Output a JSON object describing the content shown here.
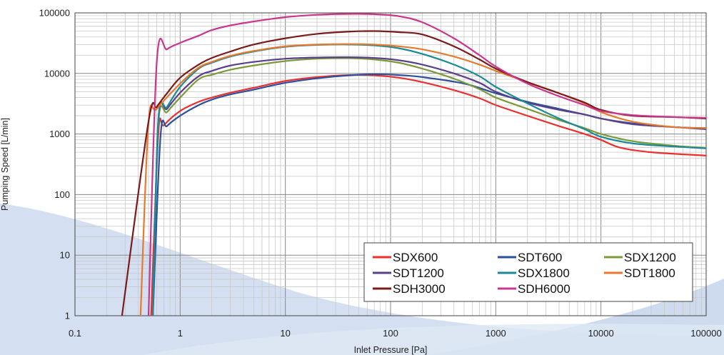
{
  "chart_data": {
    "type": "line",
    "title": "",
    "xlabel": "Inlet Pressure [Pa]",
    "ylabel": "Pumping Speed [L/min]",
    "x_scale": "log",
    "y_scale": "log",
    "xlim": [
      0.1,
      100000
    ],
    "ylim": [
      1,
      100000
    ],
    "grid": true,
    "legend_position": "bottom-right",
    "x_ticks": [
      "0.1",
      "1",
      "10",
      "100",
      "1000",
      "10000",
      "100000"
    ],
    "y_ticks": [
      "1",
      "10",
      "100",
      "1000",
      "10000",
      "100000"
    ],
    "series": [
      {
        "name": "SDX600",
        "color": "#e8302e",
        "points": [
          [
            0.53,
            1
          ],
          [
            0.62,
            1000
          ],
          [
            0.7,
            1400
          ],
          [
            1,
            2400
          ],
          [
            1.5,
            3400
          ],
          [
            2,
            4000
          ],
          [
            3,
            4800
          ],
          [
            5,
            5800
          ],
          [
            10,
            7500
          ],
          [
            20,
            8700
          ],
          [
            40,
            9400
          ],
          [
            70,
            9300
          ],
          [
            120,
            8500
          ],
          [
            200,
            7200
          ],
          [
            400,
            5300
          ],
          [
            700,
            3900
          ],
          [
            1000,
            3000
          ],
          [
            2000,
            2000
          ],
          [
            4000,
            1350
          ],
          [
            7000,
            1000
          ],
          [
            10000,
            800
          ],
          [
            15000,
            600
          ],
          [
            30000,
            500
          ],
          [
            100000,
            440
          ]
        ]
      },
      {
        "name": "SDT600",
        "color": "#2c4f9e",
        "points": [
          [
            0.55,
            1
          ],
          [
            0.65,
            900
          ],
          [
            0.75,
            1350
          ],
          [
            1,
            2000
          ],
          [
            1.5,
            3000
          ],
          [
            2,
            3700
          ],
          [
            3,
            4500
          ],
          [
            5,
            5400
          ],
          [
            10,
            7000
          ],
          [
            20,
            8300
          ],
          [
            40,
            9300
          ],
          [
            70,
            9700
          ],
          [
            120,
            9400
          ],
          [
            200,
            8700
          ],
          [
            500,
            6800
          ],
          [
            1000,
            4700
          ],
          [
            2000,
            3400
          ],
          [
            4000,
            2600
          ],
          [
            7000,
            2100
          ],
          [
            10000,
            1800
          ],
          [
            20000,
            1500
          ],
          [
            50000,
            1300
          ],
          [
            100000,
            1250
          ]
        ]
      },
      {
        "name": "SDX1200",
        "color": "#7a9a3a",
        "points": [
          [
            0.55,
            1
          ],
          [
            0.62,
            1500
          ],
          [
            0.75,
            2300
          ],
          [
            1,
            4000
          ],
          [
            1.5,
            8000
          ],
          [
            2,
            9500
          ],
          [
            3,
            11500
          ],
          [
            5,
            13500
          ],
          [
            10,
            16000
          ],
          [
            20,
            17500
          ],
          [
            40,
            17800
          ],
          [
            70,
            17000
          ],
          [
            120,
            15000
          ],
          [
            200,
            12000
          ],
          [
            400,
            8200
          ],
          [
            700,
            5500
          ],
          [
            1000,
            4000
          ],
          [
            2000,
            2600
          ],
          [
            4000,
            1700
          ],
          [
            7000,
            1250
          ],
          [
            10000,
            1000
          ],
          [
            20000,
            760
          ],
          [
            50000,
            640
          ],
          [
            100000,
            590
          ]
        ]
      },
      {
        "name": "SDT1200",
        "color": "#5a3f8a",
        "points": [
          [
            0.55,
            1
          ],
          [
            0.62,
            1700
          ],
          [
            0.75,
            2600
          ],
          [
            1,
            4800
          ],
          [
            1.5,
            9000
          ],
          [
            2,
            11000
          ],
          [
            3,
            13500
          ],
          [
            5,
            15500
          ],
          [
            10,
            17500
          ],
          [
            20,
            18300
          ],
          [
            40,
            18500
          ],
          [
            70,
            18000
          ],
          [
            120,
            16500
          ],
          [
            200,
            14000
          ],
          [
            400,
            10000
          ],
          [
            700,
            7000
          ],
          [
            1000,
            5000
          ],
          [
            2000,
            3300
          ],
          [
            4000,
            2500
          ],
          [
            7000,
            2100
          ],
          [
            10000,
            1800
          ],
          [
            20000,
            1450
          ],
          [
            50000,
            1300
          ],
          [
            100000,
            1200
          ]
        ]
      },
      {
        "name": "SDX1800",
        "color": "#1b8a98",
        "points": [
          [
            0.55,
            1
          ],
          [
            0.62,
            1700
          ],
          [
            0.75,
            2800
          ],
          [
            1,
            6000
          ],
          [
            1.5,
            12000
          ],
          [
            2,
            15000
          ],
          [
            3,
            19000
          ],
          [
            5,
            23000
          ],
          [
            10,
            27500
          ],
          [
            20,
            29500
          ],
          [
            40,
            30000
          ],
          [
            70,
            29000
          ],
          [
            120,
            26000
          ],
          [
            200,
            21000
          ],
          [
            400,
            14000
          ],
          [
            700,
            9000
          ],
          [
            1000,
            6000
          ],
          [
            2000,
            3200
          ],
          [
            4000,
            1800
          ],
          [
            7000,
            1200
          ],
          [
            10000,
            900
          ],
          [
            20000,
            700
          ],
          [
            50000,
            620
          ],
          [
            100000,
            580
          ]
        ]
      },
      {
        "name": "SDT1800",
        "color": "#e57a2e",
        "points": [
          [
            0.42,
            1
          ],
          [
            0.5,
            1500
          ],
          [
            0.6,
            2600
          ],
          [
            1,
            6800
          ],
          [
            1.5,
            12500
          ],
          [
            2,
            15500
          ],
          [
            3,
            19500
          ],
          [
            5,
            23500
          ],
          [
            10,
            28000
          ],
          [
            20,
            30000
          ],
          [
            40,
            30500
          ],
          [
            70,
            30000
          ],
          [
            120,
            28000
          ],
          [
            200,
            25000
          ],
          [
            400,
            19000
          ],
          [
            700,
            14000
          ],
          [
            1000,
            11000
          ],
          [
            2000,
            7200
          ],
          [
            4000,
            4700
          ],
          [
            7000,
            3200
          ],
          [
            10000,
            2300
          ],
          [
            20000,
            1600
          ],
          [
            50000,
            1300
          ],
          [
            100000,
            1250
          ]
        ]
      },
      {
        "name": "SDH3000",
        "color": "#7a1a1a",
        "points": [
          [
            0.28,
            1
          ],
          [
            0.5,
            1600
          ],
          [
            0.6,
            2800
          ],
          [
            0.75,
            4700
          ],
          [
            1,
            8500
          ],
          [
            1.5,
            14000
          ],
          [
            2,
            18000
          ],
          [
            3,
            23000
          ],
          [
            5,
            30000
          ],
          [
            10,
            38000
          ],
          [
            20,
            45000
          ],
          [
            40,
            49000
          ],
          [
            70,
            50000
          ],
          [
            120,
            48000
          ],
          [
            200,
            44000
          ],
          [
            400,
            28000
          ],
          [
            700,
            17000
          ],
          [
            1000,
            12000
          ],
          [
            2000,
            7200
          ],
          [
            4000,
            4700
          ],
          [
            7000,
            3300
          ],
          [
            10000,
            2500
          ],
          [
            20000,
            2000
          ],
          [
            50000,
            1900
          ],
          [
            100000,
            1800
          ]
        ]
      },
      {
        "name": "SDH6000",
        "color": "#c8378e",
        "points": [
          [
            0.5,
            1
          ],
          [
            0.6,
            16000
          ],
          [
            0.75,
            25000
          ],
          [
            1,
            32000
          ],
          [
            1.5,
            42000
          ],
          [
            2,
            52000
          ],
          [
            3,
            62000
          ],
          [
            5,
            72000
          ],
          [
            10,
            85000
          ],
          [
            20,
            93000
          ],
          [
            40,
            96000
          ],
          [
            70,
            95000
          ],
          [
            120,
            88000
          ],
          [
            200,
            70000
          ],
          [
            400,
            38000
          ],
          [
            700,
            20000
          ],
          [
            1000,
            13000
          ],
          [
            2000,
            6800
          ],
          [
            4000,
            4200
          ],
          [
            7000,
            3000
          ],
          [
            10000,
            2400
          ],
          [
            20000,
            2050
          ],
          [
            50000,
            1900
          ],
          [
            100000,
            1850
          ]
        ]
      }
    ]
  }
}
